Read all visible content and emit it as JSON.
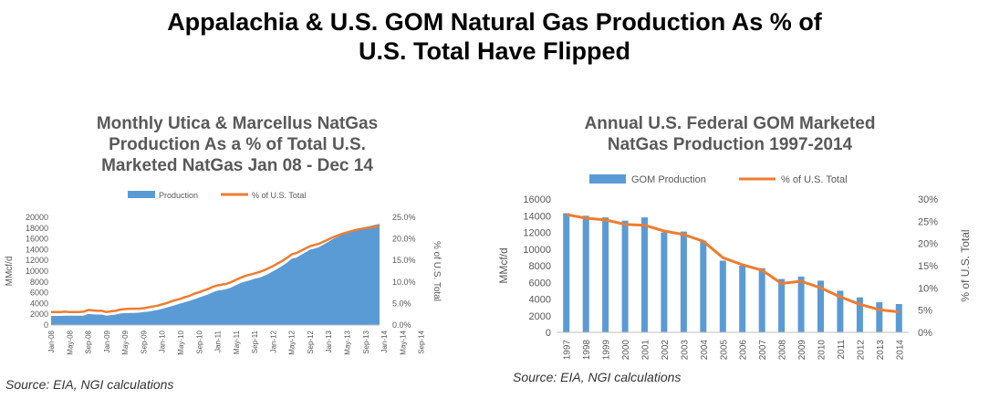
{
  "page": {
    "title_lines": [
      "Appalachia & U.S. GOM Natural Gas Production As % of",
      "U.S. Total Have Flipped"
    ],
    "colors": {
      "production": "#5b9bd5",
      "percent": "#ed7d31"
    }
  },
  "chart_data": [
    {
      "type": "area",
      "title_lines": [
        "Monthly Utica & Marcellus NatGas",
        "Production As a % of Total U.S.",
        "Marketed NatGas Jan 08 - Dec 14"
      ],
      "legend": [
        "Production",
        "% of U.S. Total"
      ],
      "ylabel": "MMcf/d",
      "y2label": "% of U.S. Total",
      "ylim": [
        0,
        20000
      ],
      "y_ticks": [
        "0",
        "2000",
        "4000",
        "6000",
        "8000",
        "10000",
        "12000",
        "14000",
        "16000",
        "18000",
        "20000"
      ],
      "y2lim": [
        0,
        25
      ],
      "y2_ticks": [
        "0.0%",
        "5.0%",
        "10.0%",
        "15.0%",
        "20.0%",
        "25.0%"
      ],
      "x_ticks": [
        "Jan-08",
        "May-08",
        "Sep-08",
        "Jan-09",
        "May-09",
        "Sep-09",
        "Jan-10",
        "May-10",
        "Sep-10",
        "Jan-11",
        "May-11",
        "Sep-11",
        "Jan-12",
        "May-12",
        "Sep-12",
        "Jan-13",
        "May-13",
        "Sep-13",
        "Jan-14",
        "May-14",
        "Sep-14"
      ],
      "series": [
        {
          "name": "Production",
          "axis": "left",
          "values": [
            1700,
            1700,
            1700,
            1750,
            1750,
            1750,
            1750,
            1750,
            2050,
            2000,
            1950,
            1950,
            1750,
            1850,
            1950,
            2150,
            2200,
            2250,
            2250,
            2300,
            2400,
            2500,
            2650,
            2800,
            3000,
            3250,
            3500,
            3750,
            4000,
            4250,
            4500,
            4800,
            5100,
            5400,
            5700,
            6100,
            6400,
            6500,
            6700,
            7000,
            7400,
            7800,
            8100,
            8300,
            8600,
            8800,
            9100,
            9500,
            10000,
            10500,
            11000,
            11600,
            12300,
            12500,
            13000,
            13500,
            14000,
            14200,
            14500,
            15000,
            15500,
            16000,
            16400,
            16800,
            17100,
            17500,
            17800,
            18000,
            18200,
            18400,
            18600,
            18800
          ]
        },
        {
          "name": "% of U.S. Total",
          "axis": "right",
          "values": [
            3.0,
            3.0,
            3.0,
            3.1,
            3.0,
            3.0,
            3.0,
            3.1,
            3.5,
            3.4,
            3.3,
            3.3,
            3.0,
            3.2,
            3.3,
            3.6,
            3.7,
            3.8,
            3.8,
            3.8,
            3.9,
            4.1,
            4.3,
            4.5,
            4.8,
            5.1,
            5.5,
            5.8,
            6.1,
            6.5,
            6.8,
            7.3,
            7.6,
            8.0,
            8.4,
            8.9,
            9.2,
            9.4,
            9.6,
            10.0,
            10.5,
            11.0,
            11.4,
            11.7,
            12.0,
            12.3,
            12.7,
            13.2,
            13.7,
            14.3,
            14.9,
            15.6,
            16.4,
            16.7,
            17.2,
            17.8,
            18.3,
            18.6,
            18.9,
            19.4,
            19.9,
            20.4,
            20.8,
            21.2,
            21.5,
            21.8,
            22.1,
            22.3,
            22.5,
            22.6,
            22.8,
            23.0
          ]
        }
      ],
      "source": "Source: EIA, NGI calculations"
    },
    {
      "type": "bar",
      "title_lines": [
        "Annual U.S. Federal GOM Marketed",
        "NatGas Production 1997-2014"
      ],
      "legend": [
        "GOM Production",
        "% of U.S. Total"
      ],
      "ylabel": "MMcf/d",
      "y2label": "% of U.S. Total",
      "ylim": [
        0,
        16000
      ],
      "y_ticks": [
        "0",
        "2000",
        "4000",
        "6000",
        "8000",
        "10000",
        "12000",
        "14000",
        "16000"
      ],
      "y2lim": [
        0,
        30
      ],
      "y2_ticks": [
        "0%",
        "5%",
        "10%",
        "15%",
        "20%",
        "25%",
        "30%"
      ],
      "categories": [
        "1997",
        "1998",
        "1999",
        "2000",
        "2001",
        "2002",
        "2003",
        "2004",
        "2005",
        "2006",
        "2007",
        "2008",
        "2009",
        "2010",
        "2011",
        "2012",
        "2013",
        "2014"
      ],
      "series": [
        {
          "name": "GOM Production",
          "axis": "left",
          "values": [
            14300,
            14000,
            13800,
            13400,
            13800,
            12000,
            12100,
            11000,
            8600,
            8000,
            7700,
            6400,
            6700,
            6200,
            5000,
            4200,
            3600,
            3400
          ]
        },
        {
          "name": "% of U.S. Total",
          "axis": "right",
          "values": [
            26.5,
            25.7,
            25.3,
            24.3,
            24.1,
            22.8,
            22.0,
            20.5,
            16.8,
            15.2,
            14.0,
            11.0,
            11.5,
            10.0,
            8.0,
            6.3,
            5.1,
            4.6
          ]
        }
      ],
      "source": "Source: EIA, NGI calculations"
    }
  ]
}
